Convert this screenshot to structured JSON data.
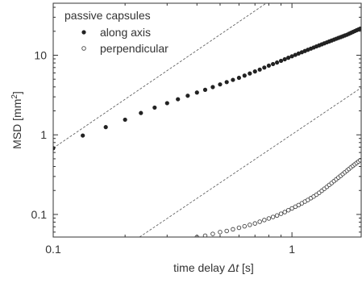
{
  "chart_data": {
    "type": "scatter",
    "title": "",
    "xlabel": "time delay",
    "xlabel_symbol": "Δt",
    "xlabel_unit": "[s]",
    "ylabel": "MSD [mm",
    "ylabel_sup": "2",
    "ylabel_end": "]",
    "x_scale": "log",
    "y_scale": "log",
    "xlim": [
      0.1,
      1.95
    ],
    "ylim": [
      0.052,
      45
    ],
    "grid": false,
    "legend_position": "top-left",
    "legend_title": "passive capsules",
    "x_ticks": [
      {
        "value": 0.1,
        "label": "0.1"
      },
      {
        "value": 1,
        "label": "1"
      }
    ],
    "y_ticks": [
      {
        "value": 0.1,
        "label": "0.1"
      },
      {
        "value": 1,
        "label": "1"
      },
      {
        "value": 10,
        "label": "10"
      }
    ],
    "series": [
      {
        "name": "along axis",
        "marker": "filled-circle",
        "color": "#222222",
        "x": [
          0.1,
          0.133,
          0.166,
          0.2,
          0.233,
          0.266,
          0.3,
          0.333,
          0.366,
          0.4,
          0.433,
          0.466,
          0.5,
          0.533,
          0.566,
          0.6,
          0.633,
          0.666,
          0.7,
          0.733,
          0.766,
          0.8,
          0.833,
          0.866,
          0.9,
          0.933,
          0.966,
          1.0,
          1.033,
          1.066,
          1.1,
          1.133,
          1.166,
          1.2,
          1.233,
          1.266,
          1.3,
          1.333,
          1.366,
          1.4,
          1.433,
          1.466,
          1.5,
          1.533,
          1.566,
          1.6,
          1.633,
          1.666,
          1.7,
          1.733,
          1.766,
          1.8,
          1.833,
          1.866,
          1.9,
          1.933
        ],
        "y": [
          0.68,
          0.98,
          1.25,
          1.55,
          1.88,
          2.2,
          2.5,
          2.8,
          3.1,
          3.4,
          3.68,
          3.98,
          4.3,
          4.6,
          4.9,
          5.2,
          5.55,
          5.9,
          6.25,
          6.6,
          7.0,
          7.4,
          7.75,
          8.1,
          8.5,
          8.9,
          9.3,
          9.7,
          10.1,
          10.5,
          10.9,
          11.3,
          11.7,
          12.1,
          12.5,
          12.9,
          13.3,
          13.7,
          14.1,
          14.5,
          14.9,
          15.3,
          15.7,
          16.1,
          16.5,
          16.9,
          17.3,
          17.7,
          18.1,
          18.6,
          19.1,
          19.6,
          20.1,
          20.6,
          21.1,
          21.6
        ]
      },
      {
        "name": "perpendicular",
        "marker": "open-circle",
        "color": "#444444",
        "x": [
          0.4,
          0.433,
          0.466,
          0.5,
          0.533,
          0.566,
          0.6,
          0.633,
          0.666,
          0.7,
          0.733,
          0.766,
          0.8,
          0.833,
          0.866,
          0.9,
          0.933,
          0.966,
          1.0,
          1.033,
          1.066,
          1.1,
          1.133,
          1.166,
          1.2,
          1.233,
          1.266,
          1.3,
          1.333,
          1.366,
          1.4,
          1.433,
          1.466,
          1.5,
          1.533,
          1.566,
          1.6,
          1.633,
          1.666,
          1.7,
          1.733,
          1.766,
          1.8,
          1.833,
          1.866,
          1.9,
          1.933
        ],
        "y": [
          0.052,
          0.054,
          0.057,
          0.06,
          0.062,
          0.065,
          0.068,
          0.071,
          0.074,
          0.077,
          0.081,
          0.085,
          0.089,
          0.093,
          0.097,
          0.102,
          0.107,
          0.113,
          0.119,
          0.125,
          0.131,
          0.138,
          0.145,
          0.152,
          0.16,
          0.168,
          0.177,
          0.187,
          0.198,
          0.21,
          0.222,
          0.235,
          0.248,
          0.262,
          0.276,
          0.291,
          0.306,
          0.322,
          0.338,
          0.355,
          0.372,
          0.39,
          0.408,
          0.426,
          0.444,
          0.462,
          0.48
        ]
      }
    ],
    "reference_lines": [
      {
        "name": "ballistic-guide-upper",
        "style": "dashed",
        "x": [
          0.1,
          0.78
        ],
        "y": [
          0.68,
          45
        ]
      },
      {
        "name": "ballistic-guide-lower",
        "style": "dashed",
        "x": [
          0.23,
          1.95
        ],
        "y": [
          0.052,
          3.9
        ]
      }
    ]
  }
}
